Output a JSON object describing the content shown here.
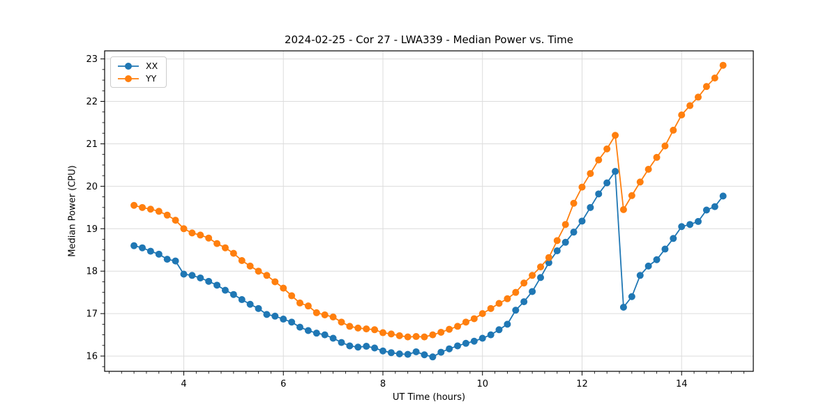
{
  "figure": {
    "title": "2024-02-25 - Cor 27 - LWA339 - Median Power vs. Time",
    "xlabel": "UT Time (hours)",
    "ylabel": "Median Power (CPU)"
  },
  "legend": {
    "items": [
      {
        "label": "XX",
        "color": "#1f77b4"
      },
      {
        "label": "YY",
        "color": "#ff7f0e"
      }
    ]
  },
  "chart_data": {
    "type": "line",
    "title": "2024-02-25 - Cor 27 - LWA339 - Median Power vs. Time",
    "xlabel": "UT Time (hours)",
    "ylabel": "Median Power (CPU)",
    "xlim": [
      2.41,
      15.44
    ],
    "ylim": [
      15.64,
      23.19
    ],
    "xticks": [
      4,
      6,
      8,
      10,
      12,
      14
    ],
    "yticks": [
      16,
      17,
      18,
      19,
      20,
      21,
      22,
      23
    ],
    "minor_tick_step_x": 0.25,
    "minor_tick_step_y": 0.25,
    "grid": true,
    "legend_position": "upper left",
    "marker": "o",
    "x": [
      3.0,
      3.167,
      3.333,
      3.5,
      3.667,
      3.833,
      4.0,
      4.167,
      4.333,
      4.5,
      4.667,
      4.833,
      5.0,
      5.167,
      5.333,
      5.5,
      5.667,
      5.833,
      6.0,
      6.167,
      6.333,
      6.5,
      6.667,
      6.833,
      7.0,
      7.167,
      7.333,
      7.5,
      7.667,
      7.833,
      8.0,
      8.167,
      8.333,
      8.5,
      8.667,
      8.833,
      9.0,
      9.167,
      9.333,
      9.5,
      9.667,
      9.833,
      10.0,
      10.167,
      10.333,
      10.5,
      10.667,
      10.833,
      11.0,
      11.167,
      11.333,
      11.5,
      11.667,
      11.833,
      12.0,
      12.167,
      12.333,
      12.5,
      12.667,
      12.833,
      13.0,
      13.167,
      13.333,
      13.5,
      13.667,
      13.833,
      14.0,
      14.167,
      14.333,
      14.5,
      14.667,
      14.833
    ],
    "series": [
      {
        "name": "XX",
        "color": "#1f77b4",
        "values": [
          18.6,
          18.55,
          18.47,
          18.4,
          18.28,
          18.24,
          17.93,
          17.9,
          17.84,
          17.76,
          17.67,
          17.55,
          17.45,
          17.33,
          17.22,
          17.12,
          16.98,
          16.94,
          16.87,
          16.8,
          16.68,
          16.6,
          16.54,
          16.5,
          16.42,
          16.32,
          16.24,
          16.21,
          16.23,
          16.19,
          16.12,
          16.08,
          16.05,
          16.04,
          16.1,
          16.03,
          15.98,
          16.09,
          16.17,
          16.24,
          16.3,
          16.35,
          16.42,
          16.5,
          16.62,
          16.75,
          17.08,
          17.28,
          17.52,
          17.85,
          18.2,
          18.48,
          18.68,
          18.92,
          19.18,
          19.5,
          19.82,
          20.08,
          20.35,
          17.15,
          17.4,
          17.9,
          18.12,
          18.27,
          18.52,
          18.77,
          19.05,
          19.1,
          19.17,
          19.44,
          19.52,
          19.77
        ]
      },
      {
        "name": "YY",
        "color": "#ff7f0e",
        "values": [
          19.55,
          19.5,
          19.46,
          19.41,
          19.32,
          19.2,
          19.0,
          18.9,
          18.85,
          18.78,
          18.65,
          18.55,
          18.42,
          18.25,
          18.12,
          18.0,
          17.9,
          17.75,
          17.6,
          17.42,
          17.25,
          17.18,
          17.02,
          16.97,
          16.92,
          16.8,
          16.7,
          16.66,
          16.64,
          16.62,
          16.55,
          16.52,
          16.48,
          16.45,
          16.46,
          16.45,
          16.5,
          16.56,
          16.63,
          16.7,
          16.8,
          16.88,
          17.0,
          17.12,
          17.24,
          17.35,
          17.5,
          17.72,
          17.9,
          18.1,
          18.32,
          18.72,
          19.1,
          19.6,
          19.98,
          20.3,
          20.62,
          20.88,
          21.2,
          19.45,
          19.78,
          20.1,
          20.4,
          20.68,
          20.95,
          21.32,
          21.68,
          21.9,
          22.1,
          22.35,
          22.55,
          22.85
        ]
      }
    ]
  },
  "style": {
    "grid_color": "#dcdcdc",
    "spine_color": "#000000",
    "background": "#ffffff"
  }
}
